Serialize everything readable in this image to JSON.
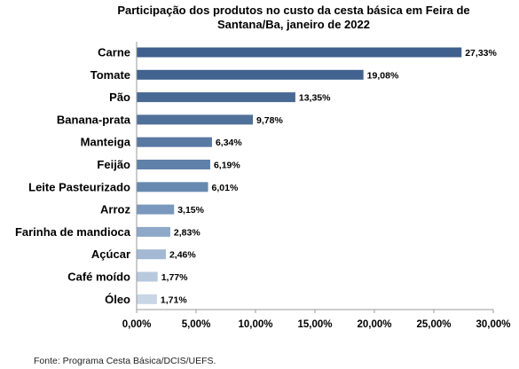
{
  "chart_data": {
    "type": "bar",
    "orientation": "horizontal",
    "title_lines": [
      "Participação dos produtos no custo da cesta básica em Feira de",
      "Santana/Ba, janeiro  de 2022"
    ],
    "categories": [
      "Carne",
      "Tomate",
      "Pão",
      "Banana-prata",
      "Manteiga",
      "Feijão",
      "Leite Pasteurizado",
      "Arroz",
      "Farinha de mandioca",
      "Açúcar",
      "Café moído",
      "Óleo"
    ],
    "values": [
      27.33,
      19.08,
      13.35,
      9.78,
      6.34,
      6.19,
      6.01,
      3.15,
      2.83,
      2.46,
      1.77,
      1.71
    ],
    "value_labels": [
      "27,33%",
      "19,08%",
      "13,35%",
      "9,78%",
      "6,34%",
      "6,19%",
      "6,01%",
      "3,15%",
      "2,83%",
      "2,46%",
      "1,77%",
      "1,71%"
    ],
    "bar_colors": [
      "#3f5f8c",
      "#42638f",
      "#476993",
      "#4f7099",
      "#5879a2",
      "#5f81aa",
      "#6789b0",
      "#7a98bd",
      "#8ea8c8",
      "#a2b8d3",
      "#b8c9de",
      "#c9d6e6"
    ],
    "xlim": [
      0,
      30
    ],
    "xticks": [
      0,
      5,
      10,
      15,
      20,
      25,
      30
    ],
    "xtick_labels": [
      "0,00%",
      "5,00%",
      "10,00%",
      "15,00%",
      "20,00%",
      "25,00%",
      "30,00%"
    ],
    "grid": false,
    "legend": "none"
  },
  "source": "Fonte: Programa Cesta Básica/DCIS/UEFS."
}
